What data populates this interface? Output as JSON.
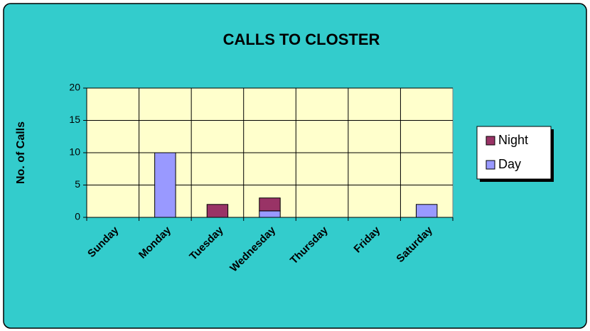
{
  "chart_data": {
    "type": "stacked_bar",
    "title": "CALLS TO CLOSTER",
    "y_label": "No. of Calls",
    "categories": [
      "Sunday",
      "Monday",
      "Tuesday",
      "Wednesday",
      "Thursday",
      "Friday",
      "Saturday"
    ],
    "series": [
      {
        "name": "Day",
        "color": "#9999ff",
        "values": [
          0,
          10,
          0,
          1,
          0,
          0,
          2
        ]
      },
      {
        "name": "Night",
        "color": "#993366",
        "values": [
          0,
          0,
          2,
          2,
          0,
          0,
          0
        ]
      }
    ],
    "ylim": [
      0,
      20
    ],
    "yticks": [
      0,
      5,
      10,
      15,
      20
    ],
    "grid": true,
    "legend": "right"
  }
}
